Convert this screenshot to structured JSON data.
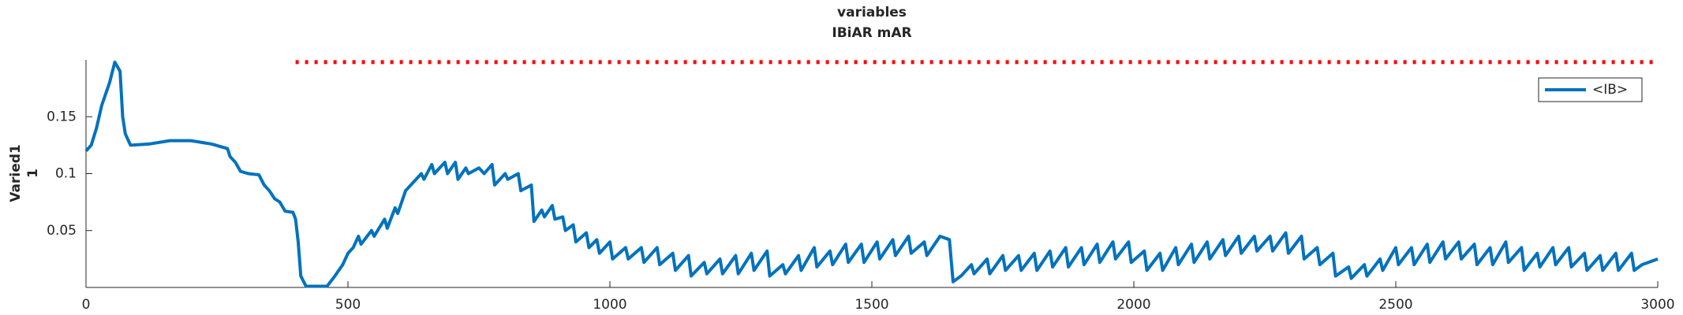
{
  "chart_data": {
    "type": "line",
    "title": [
      "variables",
      "IBiAR mAR"
    ],
    "ylabel": [
      "Varied1",
      "1"
    ],
    "xlim": [
      0,
      3000
    ],
    "xticks": [
      0,
      500,
      1000,
      1500,
      2000,
      2500,
      3000
    ],
    "ylim": [
      0,
      0.2
    ],
    "yticks": [
      0.05,
      0.1,
      0.15
    ],
    "legend": "upper right",
    "reference_line": {
      "x": [
        400,
        3000
      ],
      "y": 0.198,
      "color": "#ff0000"
    },
    "x": [
      0,
      10,
      20,
      30,
      45,
      55,
      65,
      70,
      75,
      85,
      120,
      160,
      200,
      240,
      270,
      275,
      285,
      295,
      310,
      330,
      340,
      350,
      360,
      370,
      380,
      395,
      400,
      405,
      410,
      420,
      460,
      475,
      490,
      500,
      510,
      520,
      525,
      545,
      550,
      570,
      575,
      590,
      595,
      610,
      620,
      640,
      645,
      660,
      665,
      685,
      690,
      705,
      710,
      725,
      730,
      750,
      760,
      775,
      780,
      800,
      805,
      825,
      830,
      850,
      855,
      870,
      875,
      890,
      895,
      910,
      915,
      930,
      935,
      955,
      960,
      975,
      980,
      1000,
      1005,
      1030,
      1035,
      1060,
      1065,
      1090,
      1095,
      1120,
      1125,
      1150,
      1155,
      1180,
      1185,
      1210,
      1215,
      1240,
      1245,
      1270,
      1275,
      1300,
      1305,
      1330,
      1335,
      1360,
      1365,
      1390,
      1395,
      1420,
      1425,
      1450,
      1455,
      1480,
      1485,
      1510,
      1515,
      1540,
      1545,
      1570,
      1575,
      1600,
      1605,
      1630,
      1648,
      1655,
      1670,
      1690,
      1695,
      1720,
      1725,
      1750,
      1755,
      1780,
      1785,
      1810,
      1815,
      1840,
      1845,
      1870,
      1875,
      1900,
      1905,
      1930,
      1935,
      1960,
      1965,
      1990,
      1995,
      2020,
      2025,
      2050,
      2055,
      2080,
      2085,
      2110,
      2115,
      2140,
      2145,
      2170,
      2175,
      2200,
      2205,
      2230,
      2235,
      2260,
      2265,
      2290,
      2295,
      2320,
      2325,
      2350,
      2355,
      2380,
      2385,
      2410,
      2415,
      2440,
      2445,
      2470,
      2475,
      2500,
      2505,
      2530,
      2535,
      2560,
      2565,
      2590,
      2595,
      2620,
      2625,
      2650,
      2655,
      2680,
      2685,
      2710,
      2715,
      2740,
      2745,
      2770,
      2775,
      2800,
      2805,
      2830,
      2835,
      2860,
      2865,
      2890,
      2895,
      2920,
      2925,
      2950,
      2955,
      2970,
      3000
    ],
    "series": [
      {
        "name": "<IB>",
        "color": "#0072bd",
        "values": [
          0.12,
          0.125,
          0.14,
          0.16,
          0.18,
          0.198,
          0.19,
          0.15,
          0.135,
          0.125,
          0.126,
          0.129,
          0.129,
          0.126,
          0.122,
          0.115,
          0.11,
          0.102,
          0.1,
          0.099,
          0.09,
          0.085,
          0.078,
          0.075,
          0.067,
          0.066,
          0.06,
          0.04,
          0.01,
          0.001,
          0.001,
          0.01,
          0.02,
          0.03,
          0.035,
          0.045,
          0.038,
          0.05,
          0.045,
          0.06,
          0.052,
          0.07,
          0.065,
          0.085,
          0.09,
          0.1,
          0.095,
          0.108,
          0.1,
          0.11,
          0.1,
          0.11,
          0.095,
          0.105,
          0.1,
          0.105,
          0.1,
          0.108,
          0.09,
          0.1,
          0.095,
          0.1,
          0.085,
          0.09,
          0.058,
          0.068,
          0.062,
          0.072,
          0.06,
          0.062,
          0.05,
          0.055,
          0.04,
          0.048,
          0.035,
          0.042,
          0.03,
          0.04,
          0.025,
          0.035,
          0.025,
          0.035,
          0.022,
          0.035,
          0.02,
          0.03,
          0.015,
          0.028,
          0.01,
          0.022,
          0.012,
          0.025,
          0.012,
          0.028,
          0.012,
          0.03,
          0.015,
          0.032,
          0.01,
          0.02,
          0.012,
          0.028,
          0.015,
          0.035,
          0.018,
          0.032,
          0.02,
          0.038,
          0.022,
          0.038,
          0.022,
          0.04,
          0.025,
          0.042,
          0.028,
          0.045,
          0.03,
          0.04,
          0.028,
          0.045,
          0.042,
          0.005,
          0.01,
          0.02,
          0.012,
          0.025,
          0.012,
          0.028,
          0.015,
          0.028,
          0.015,
          0.03,
          0.015,
          0.032,
          0.018,
          0.035,
          0.018,
          0.035,
          0.02,
          0.038,
          0.022,
          0.04,
          0.025,
          0.04,
          0.022,
          0.032,
          0.015,
          0.03,
          0.015,
          0.035,
          0.02,
          0.038,
          0.022,
          0.04,
          0.025,
          0.042,
          0.028,
          0.045,
          0.03,
          0.045,
          0.032,
          0.045,
          0.032,
          0.048,
          0.03,
          0.045,
          0.025,
          0.035,
          0.02,
          0.03,
          0.01,
          0.018,
          0.008,
          0.02,
          0.01,
          0.025,
          0.015,
          0.035,
          0.02,
          0.035,
          0.02,
          0.038,
          0.022,
          0.04,
          0.025,
          0.04,
          0.025,
          0.038,
          0.02,
          0.035,
          0.02,
          0.04,
          0.022,
          0.035,
          0.015,
          0.03,
          0.018,
          0.035,
          0.02,
          0.035,
          0.018,
          0.03,
          0.015,
          0.028,
          0.015,
          0.03,
          0.015,
          0.03,
          0.015,
          0.02,
          0.025
        ]
      }
    ]
  }
}
